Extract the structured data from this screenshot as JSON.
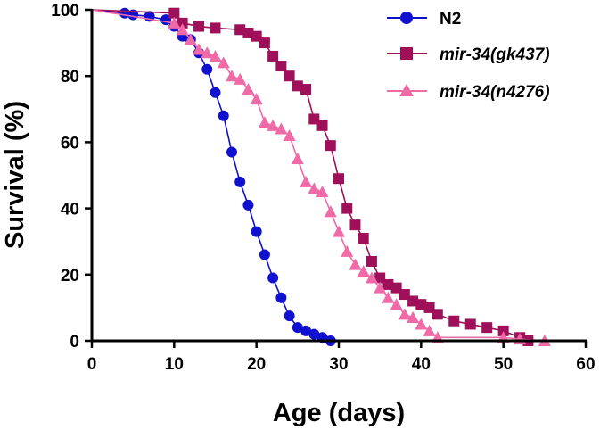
{
  "chart_data": {
    "type": "line",
    "title": "",
    "xlabel": "Age (days)",
    "ylabel": "Survival (%)",
    "xlim": [
      0,
      60
    ],
    "ylim": [
      0,
      100
    ],
    "xticks": [
      0,
      10,
      20,
      30,
      40,
      50,
      60
    ],
    "yticks": [
      0,
      20,
      40,
      60,
      80,
      100
    ],
    "xtick_labels": [
      "0",
      "10",
      "20",
      "30",
      "40",
      "50",
      "60"
    ],
    "ytick_labels": [
      "0",
      "20",
      "40",
      "60",
      "80",
      "100"
    ],
    "grid": false,
    "legend_position": "top-right",
    "series": [
      {
        "name": "N2",
        "italic": false,
        "color": "#1010d0",
        "marker": "circle",
        "x": [
          4,
          5,
          7,
          9,
          10,
          11,
          12,
          13,
          14,
          15,
          16,
          17,
          18,
          19,
          20,
          21,
          22,
          23,
          24,
          25,
          26,
          27,
          28,
          29
        ],
        "y": [
          99,
          98.5,
          98,
          97,
          95,
          92,
          91,
          87,
          82,
          75,
          68,
          57,
          48,
          41,
          33,
          26,
          19,
          13,
          7.5,
          4,
          3,
          2,
          1,
          0
        ]
      },
      {
        "name": "mir-34(gk437)",
        "italic": true,
        "color": "#a0105a",
        "marker": "square",
        "x": [
          10,
          11,
          13,
          15,
          18,
          19,
          20,
          21,
          22,
          23,
          24,
          25,
          26,
          27,
          28,
          29,
          30,
          31,
          32,
          33,
          34,
          35,
          36,
          37,
          38,
          39,
          40,
          41,
          42,
          44,
          46,
          48,
          50,
          52,
          53
        ],
        "y": [
          99,
          96,
          95,
          94.5,
          94,
          93,
          92,
          90,
          86,
          83,
          80,
          77,
          76,
          67,
          65,
          59,
          49,
          40,
          35,
          31,
          24,
          19,
          17,
          16,
          14,
          12,
          11,
          10,
          8,
          6,
          5,
          4,
          3,
          1,
          0
        ]
      },
      {
        "name": "mir-34(n4276)",
        "italic": true,
        "color": "#f06aa8",
        "marker": "triangle",
        "x": [
          10,
          11,
          12,
          13,
          14,
          15,
          16,
          17,
          18,
          19,
          20,
          21,
          22,
          23,
          24,
          25,
          26,
          27,
          28,
          29,
          30,
          31,
          32,
          33,
          34,
          35,
          36,
          37,
          38,
          39,
          40,
          41,
          42,
          50,
          52,
          55
        ],
        "y": [
          96,
          94,
          91,
          88,
          87,
          86,
          84,
          80,
          79,
          76,
          73,
          66,
          65,
          64,
          62,
          55,
          48,
          46,
          45,
          39,
          33,
          27,
          23,
          21,
          19,
          16,
          13,
          11,
          8,
          7,
          5,
          3,
          1,
          1,
          0.5,
          0
        ]
      }
    ]
  }
}
